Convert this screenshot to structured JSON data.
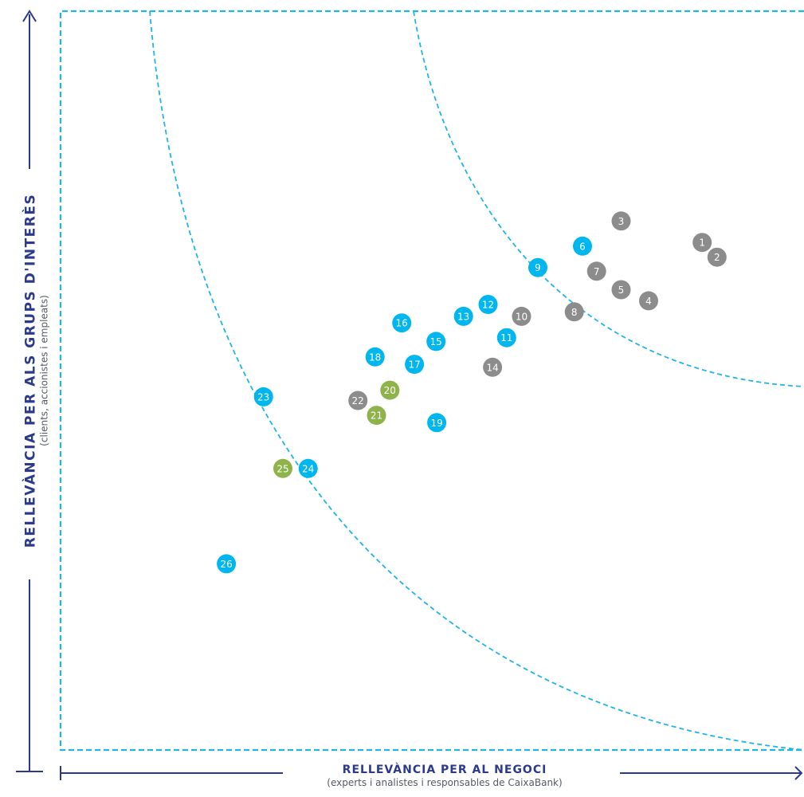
{
  "chart_data": {
    "type": "scatter",
    "title": "",
    "xlabel": "RELLEVÀNCIA PER AL NEGOCI",
    "xlabel_sub": "(experts i analistes i responsables de CaixaBank)",
    "ylabel": "RELLEVÀNCIA PER ALS GRUPS D'INTERÈS",
    "ylabel_sub": "(clients, accionistes i empleats)",
    "xlim": [
      0,
      100
    ],
    "ylim": [
      0,
      100
    ],
    "grid": false,
    "colors": {
      "gray": "#8c8c8c",
      "blue": "#00b6ef",
      "green": "#8db34a",
      "axis": "#2b3a8c",
      "boundary": "#1fb5e6"
    },
    "points": [
      {
        "label": "1",
        "x": 86.3,
        "y": 68.7,
        "color": "gray"
      },
      {
        "label": "2",
        "x": 88.3,
        "y": 66.7,
        "color": "gray"
      },
      {
        "label": "3",
        "x": 75.4,
        "y": 71.6,
        "color": "gray"
      },
      {
        "label": "4",
        "x": 79.1,
        "y": 60.8,
        "color": "gray"
      },
      {
        "label": "5",
        "x": 75.4,
        "y": 62.3,
        "color": "gray"
      },
      {
        "label": "6",
        "x": 70.2,
        "y": 68.2,
        "color": "blue"
      },
      {
        "label": "7",
        "x": 72.1,
        "y": 64.8,
        "color": "gray"
      },
      {
        "label": "8",
        "x": 69.1,
        "y": 59.3,
        "color": "gray"
      },
      {
        "label": "9",
        "x": 64.2,
        "y": 65.3,
        "color": "blue"
      },
      {
        "label": "10",
        "x": 62.0,
        "y": 58.7,
        "color": "gray"
      },
      {
        "label": "11",
        "x": 60.0,
        "y": 55.8,
        "color": "blue"
      },
      {
        "label": "12",
        "x": 57.5,
        "y": 60.3,
        "color": "blue"
      },
      {
        "label": "13",
        "x": 54.2,
        "y": 58.7,
        "color": "blue"
      },
      {
        "label": "14",
        "x": 58.1,
        "y": 51.8,
        "color": "gray"
      },
      {
        "label": "15",
        "x": 50.5,
        "y": 55.3,
        "color": "blue"
      },
      {
        "label": "16",
        "x": 45.9,
        "y": 57.8,
        "color": "blue"
      },
      {
        "label": "17",
        "x": 47.6,
        "y": 52.2,
        "color": "blue"
      },
      {
        "label": "18",
        "x": 42.3,
        "y": 53.2,
        "color": "blue"
      },
      {
        "label": "19",
        "x": 50.6,
        "y": 44.3,
        "color": "blue"
      },
      {
        "label": "20",
        "x": 44.3,
        "y": 48.7,
        "color": "green"
      },
      {
        "label": "21",
        "x": 42.5,
        "y": 45.3,
        "color": "green"
      },
      {
        "label": "22",
        "x": 40.0,
        "y": 47.3,
        "color": "gray"
      },
      {
        "label": "23",
        "x": 27.3,
        "y": 47.8,
        "color": "blue"
      },
      {
        "label": "24",
        "x": 33.3,
        "y": 38.1,
        "color": "blue"
      },
      {
        "label": "25",
        "x": 29.9,
        "y": 38.1,
        "color": "green"
      },
      {
        "label": "26",
        "x": 22.3,
        "y": 25.2,
        "color": "blue"
      }
    ]
  }
}
